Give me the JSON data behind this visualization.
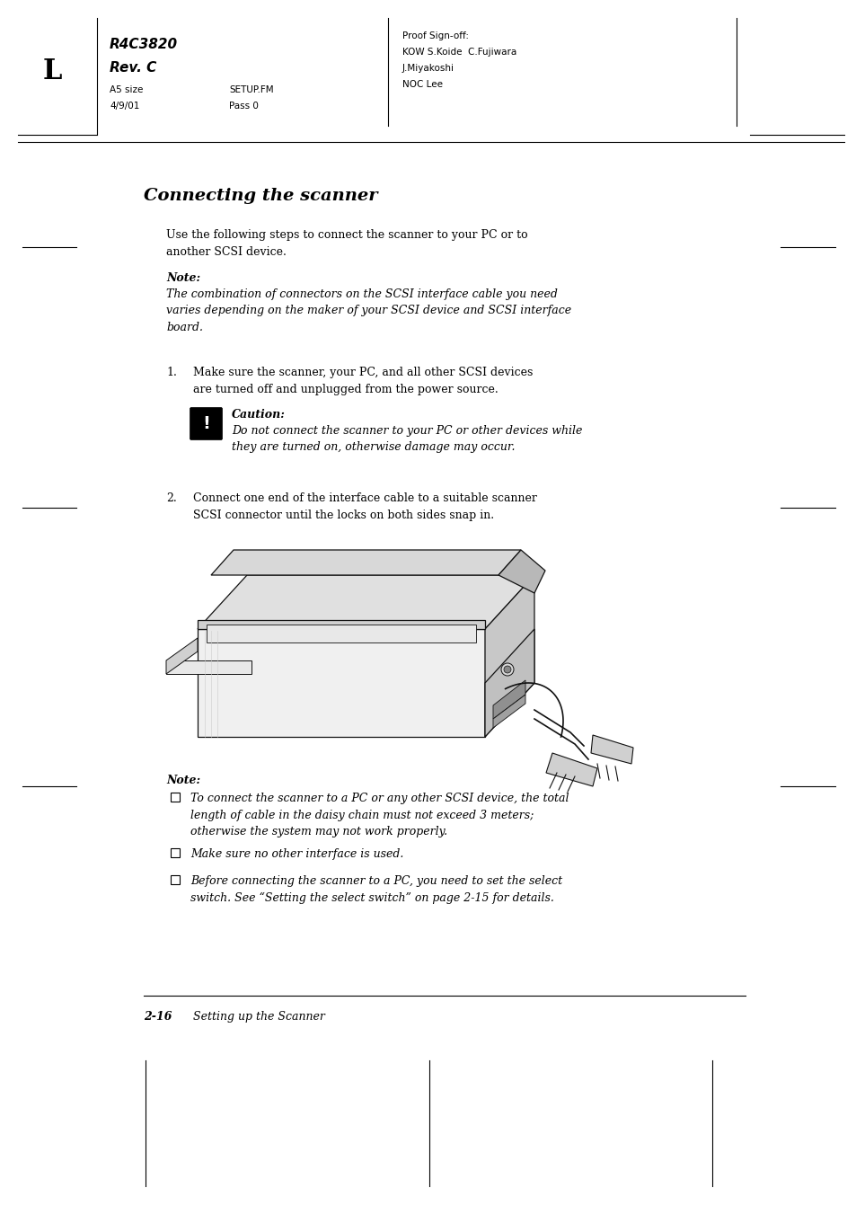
{
  "bg_color": "#ffffff",
  "fig_w": 9.54,
  "fig_h": 13.51,
  "dpi": 100,
  "header_L": "L",
  "header_title1": "R4C3820",
  "header_title2": "Rev. C",
  "header_sub1": "A5 size",
  "header_sub2": "4/9/01",
  "header_sub3": "SETUP.FM",
  "header_sub4": "Pass 0",
  "header_proof": [
    "Proof Sign-off:",
    "KOW S.Koide  C.Fujiwara",
    "J.Miyakoshi",
    "NOC Lee"
  ],
  "section_title": "Connecting the scanner",
  "intro": "Use the following steps to connect the scanner to your PC or to\nanother SCSI device.",
  "note1_label": "Note:",
  "note1_body": "The combination of connectors on the SCSI interface cable you need\nvaries depending on the maker of your SCSI device and SCSI interface\nboard.",
  "step1_num": "1.",
  "step1_body": "Make sure the scanner, your PC, and all other SCSI devices\nare turned off and unplugged from the power source.",
  "caution_label": "Caution:",
  "caution_body": "Do not connect the scanner to your PC or other devices while\nthey are turned on, otherwise damage may occur.",
  "step2_num": "2.",
  "step2_body": "Connect one end of the interface cable to a suitable scanner\nSCSI connector until the locks on both sides snap in.",
  "note2_label": "Note:",
  "note2_items": [
    "To connect the scanner to a PC or any other SCSI device, the total\nlength of cable in the daisy chain must not exceed 3 meters;\notherwise the system may not work properly.",
    "Make sure no other interface is used.",
    "Before connecting the scanner to a PC, you need to set the select\nswitch. See “Setting the select switch” on page 2-15 for details."
  ],
  "footer_num": "2-16",
  "footer_label": "Setting up the Scanner"
}
